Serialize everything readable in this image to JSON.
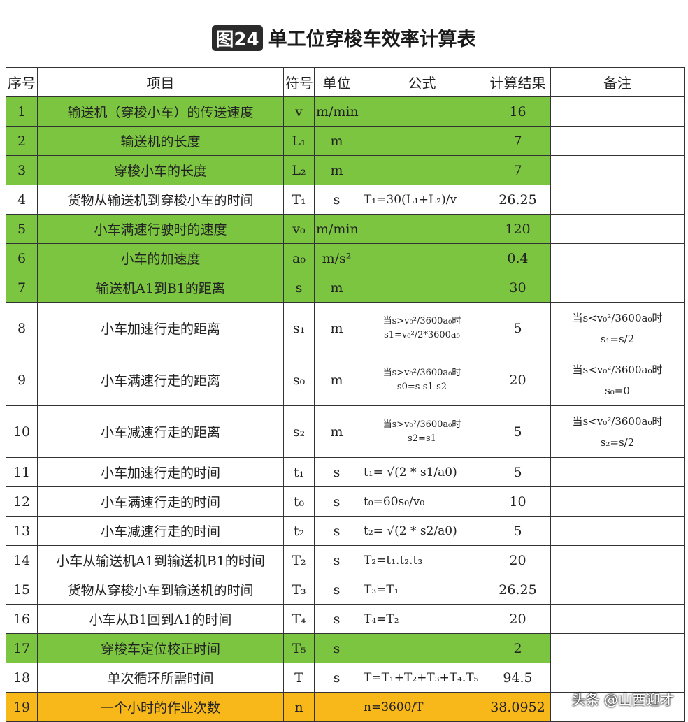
{
  "title": {
    "badge": "图24",
    "text": "单工位穿梭车效率计算表"
  },
  "headers": [
    "序号",
    "项目",
    "符号",
    "单位",
    "公式",
    "计算结果",
    "备注"
  ],
  "rows": [
    {
      "no": "1",
      "item": "输送机（穿梭小车）的传送速度",
      "sym": "v",
      "unit": "m/min",
      "formula": "",
      "result": "16",
      "note": "",
      "style": "green"
    },
    {
      "no": "2",
      "item": "输送机的长度",
      "sym": "L₁",
      "unit": "m",
      "formula": "",
      "result": "7",
      "note": "",
      "style": "green"
    },
    {
      "no": "3",
      "item": "穿梭小车的长度",
      "sym": "L₂",
      "unit": "m",
      "formula": "",
      "result": "7",
      "note": "",
      "style": "green"
    },
    {
      "no": "4",
      "item": "货物从输送机到穿梭小车的时间",
      "sym": "T₁",
      "unit": "s",
      "formula": "T₁=30(L₁+L₂)/v",
      "result": "26.25",
      "note": "",
      "style": ""
    },
    {
      "no": "5",
      "item": "小车满速行驶时的速度",
      "sym": "v₀",
      "unit": "m/min",
      "formula": "",
      "result": "120",
      "note": "",
      "style": "green"
    },
    {
      "no": "6",
      "item": "小车的加速度",
      "sym": "a₀",
      "unit": "m/s²",
      "formula": "",
      "result": "0.4",
      "note": "",
      "style": "green"
    },
    {
      "no": "7",
      "item": "输送机A1到B1的距离",
      "sym": "s",
      "unit": "m",
      "formula": "",
      "result": "30",
      "note": "",
      "style": "green"
    },
    {
      "no": "8",
      "item": "小车加速行走的距离",
      "sym": "s₁",
      "unit": "m",
      "formula": "当s>v₀²/3600a₀时",
      "formula2": "s1=v₀²/2*3600a₀",
      "result": "5",
      "note": "当s<v₀²/3600a₀时",
      "note2": "s₁=s/2",
      "style": "tall"
    },
    {
      "no": "9",
      "item": "小车满速行走的距离",
      "sym": "s₀",
      "unit": "m",
      "formula": "当s>v₀²/3600a₀时",
      "formula2": "s0=s-s1-s2",
      "result": "20",
      "note": "当s<v₀²/3600a₀时",
      "note2": "s₀=0",
      "style": "tall"
    },
    {
      "no": "10",
      "item": "小车减速行走的距离",
      "sym": "s₂",
      "unit": "m",
      "formula": "当s>v₀²/3600a₀时",
      "formula2": "s2=s1",
      "result": "5",
      "note": "当s<v₀²/3600a₀时",
      "note2": "s₂=s/2",
      "style": "tall"
    },
    {
      "no": "11",
      "item": "小车加速行走的时间",
      "sym": "t₁",
      "unit": "s",
      "formula": "t₁= √(2 * s1/a0)",
      "result": "5",
      "note": "",
      "style": ""
    },
    {
      "no": "12",
      "item": "小车满速行走的时间",
      "sym": "t₀",
      "unit": "s",
      "formula": "t₀=60s₀/v₀",
      "result": "10",
      "note": "",
      "style": ""
    },
    {
      "no": "13",
      "item": "小车减速行走的时间",
      "sym": "t₂",
      "unit": "s",
      "formula": "t₂= √(2 * s2/a0)",
      "result": "5",
      "note": "",
      "style": ""
    },
    {
      "no": "14",
      "item": "小车从输送机A1到输送机B1的时间",
      "sym": "T₂",
      "unit": "s",
      "formula": "T₂=t₁.t₂.t₃",
      "result": "20",
      "note": "",
      "style": ""
    },
    {
      "no": "15",
      "item": "货物从穿梭小车到输送机的时间",
      "sym": "T₃",
      "unit": "s",
      "formula": "T₃=T₁",
      "result": "26.25",
      "note": "",
      "style": ""
    },
    {
      "no": "16",
      "item": "小车从B1回到A1的时间",
      "sym": "T₄",
      "unit": "s",
      "formula": "T₄=T₂",
      "result": "20",
      "note": "",
      "style": ""
    },
    {
      "no": "17",
      "item": "穿梭车定位校正时间",
      "sym": "T₅",
      "unit": "s",
      "formula": "",
      "result": "2",
      "note": "",
      "style": "green"
    },
    {
      "no": "18",
      "item": "单次循环所需时间",
      "sym": "T",
      "unit": "s",
      "formula": "T=T₁+T₂+T₃+T₄.T₅",
      "result": "94.5",
      "note": "",
      "style": ""
    },
    {
      "no": "19",
      "item": "一个小时的作业次数",
      "sym": "n",
      "unit": "",
      "formula": "n=3600/T",
      "result": "38.0952",
      "note": "",
      "style": "orange"
    }
  ],
  "watermark": "头条 @山西迎才",
  "colors": {
    "green": "#7cc540",
    "orange": "#f8b81a"
  }
}
